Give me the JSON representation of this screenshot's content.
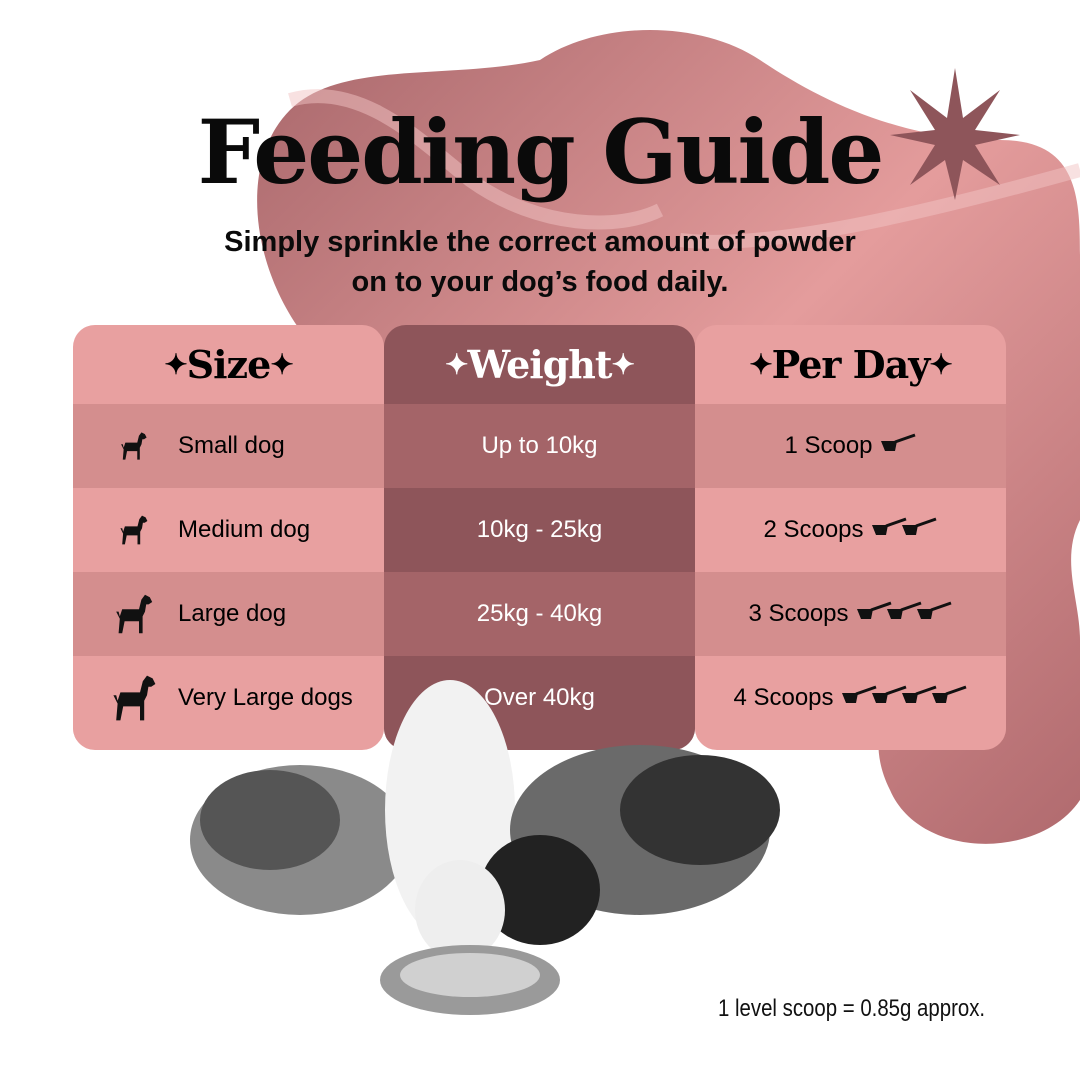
{
  "title": "Feeding Guide",
  "subtitle": [
    "Simply sprinkle the correct amount of powder",
    "on to your dog’s food daily."
  ],
  "colors": {
    "light_pink": "#e8a0a0",
    "mid_pink": "#d48e8e",
    "weight_header": "#8e555a",
    "weight_row": "#a46468",
    "weight_row_dark": "#8e555a",
    "blob": "#c47a7d"
  },
  "headers": {
    "size": "Size",
    "weight": "Weight",
    "per_day": "Per Day",
    "sparkle": "✦"
  },
  "rows": [
    {
      "size": "Small dog",
      "weight": "Up to 10kg",
      "per_day": "1 Scoop",
      "scoops": 1
    },
    {
      "size": "Medium dog",
      "weight": "10kg - 25kg",
      "per_day": "2 Scoops",
      "scoops": 2
    },
    {
      "size": "Large dog",
      "weight": "25kg - 40kg",
      "per_day": "3 Scoops",
      "scoops": 3
    },
    {
      "size": "Very Large dogs",
      "weight": "Over 40kg",
      "per_day": "4 Scoops",
      "scoops": 4
    }
  ],
  "footnote": "1 level scoop = 0.85g approx."
}
